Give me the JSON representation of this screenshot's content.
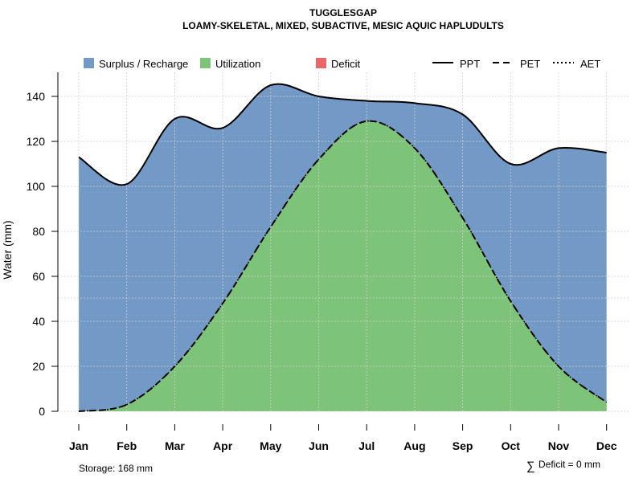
{
  "chart_data": {
    "type": "area",
    "title": "TUGGLESGAP",
    "subtitle": "LOAMY-SKELETAL, MIXED, SUBACTIVE, MESIC AQUIC HAPLUDULTS",
    "ylabel": "Water (mm)",
    "ylim": [
      0,
      150
    ],
    "yticks": [
      0,
      20,
      40,
      60,
      80,
      100,
      120,
      140
    ],
    "categories": [
      "Jan",
      "Feb",
      "Mar",
      "Apr",
      "May",
      "Jun",
      "Jul",
      "Aug",
      "Sep",
      "Oct",
      "Nov",
      "Dec"
    ],
    "series": [
      {
        "name": "PPT",
        "values": [
          113,
          101,
          130,
          126,
          145,
          140,
          138,
          137,
          132,
          110,
          117,
          115
        ]
      },
      {
        "name": "PET",
        "values": [
          0,
          3,
          20,
          48,
          82,
          112,
          129,
          117,
          86,
          49,
          20,
          4
        ]
      },
      {
        "name": "AET",
        "values": [
          0,
          3,
          20,
          48,
          82,
          112,
          129,
          117,
          86,
          49,
          20,
          4
        ]
      }
    ],
    "area_legend": [
      {
        "name": "Surplus / Recharge",
        "color": "#7399c6"
      },
      {
        "name": "Utilization",
        "color": "#7dc47a"
      },
      {
        "name": "Deficit",
        "color": "#e8686a"
      }
    ],
    "line_legend": [
      {
        "name": "PPT",
        "style": "solid"
      },
      {
        "name": "PET",
        "style": "dashed"
      },
      {
        "name": "AET",
        "style": "dotted"
      }
    ],
    "legend_position": "top",
    "grid": true,
    "storage_note": "Storage: 168 mm",
    "deficit_note": "Deficit = 0 mm",
    "deficit_symbol": "∑"
  }
}
